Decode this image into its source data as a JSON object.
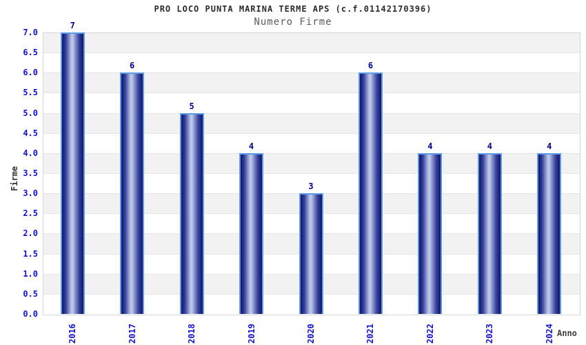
{
  "chart_data": {
    "type": "bar",
    "title": "PRO LOCO PUNTA MARINA TERME APS (c.f.01142170396)",
    "subtitle": "Numero Firme",
    "xlabel": "Anno",
    "ylabel": "Firme",
    "categories": [
      "2016",
      "2017",
      "2018",
      "2019",
      "2020",
      "2021",
      "2022",
      "2023",
      "2024"
    ],
    "values": [
      7,
      6,
      5,
      4,
      3,
      6,
      4,
      4,
      4
    ],
    "ylim": [
      0,
      7
    ],
    "ytick_step": 0.5,
    "grid": "horizontal-bands-alternating",
    "legend": "none",
    "colors": {
      "bar_edge_dark": "#131368",
      "bar_mid": "#34429c",
      "bar_highlight": "#bcc6e8",
      "bar_border": "#5c9ce6",
      "tick_label_blue": "#1212cf",
      "value_label_navy": "#00008b",
      "band_gray": "#f2f2f2",
      "band_white": "#ffffff",
      "gridline": "#e5e5e5",
      "plot_border": "#d6d6d6",
      "title_color": "#2b2b2b",
      "subtitle_color": "#5a5a5a"
    }
  }
}
